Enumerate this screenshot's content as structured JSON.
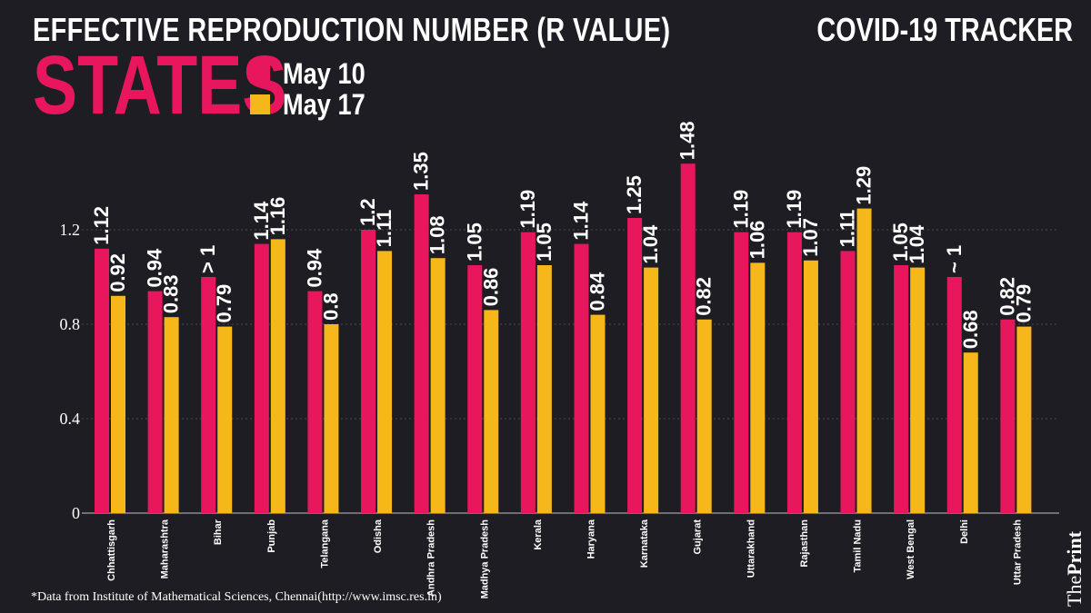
{
  "header": {
    "title": "EFFECTIVE REPRODUCTION NUMBER (R VALUE)",
    "subtitle": "STATES",
    "tracker": "COVID-19 TRACKER"
  },
  "footnote": "*Data from Institute of Mathematical Sciences, Chennai(http://www.imsc.res.in)",
  "brand": {
    "the": "The",
    "print": "Print"
  },
  "colors": {
    "may10": "#e8175d",
    "may17": "#f6b71a",
    "background": "#1d1d23",
    "grid": "#4a4a52"
  },
  "chart_data": {
    "type": "bar",
    "title": "EFFECTIVE REPRODUCTION NUMBER (R VALUE)",
    "xlabel": "",
    "ylabel": "",
    "ylim": [
      0,
      1.48
    ],
    "yticks": [
      0,
      0.4,
      0.8,
      1.2
    ],
    "ytick_labels": [
      "0",
      "0.4",
      "0.8",
      "1.2"
    ],
    "grid": true,
    "legend_position": "top-left",
    "categories": [
      "Chhattisgarh",
      "Maharashtra",
      "Bihar",
      "Punjab",
      "Telangana",
      "Odisha",
      "Andhra Pradesh",
      "Madhya Pradesh",
      "Kerala",
      "Haryana",
      "Karnataka",
      "Gujarat",
      "Uttarakhand",
      "Rajasthan",
      "Tamil Nadu",
      "West Bengal",
      "Delhi",
      "Uttar Pradesh"
    ],
    "series": [
      {
        "name": "May 10",
        "values": [
          1.12,
          0.94,
          1.0,
          1.14,
          0.94,
          1.2,
          1.35,
          1.05,
          1.19,
          1.14,
          1.25,
          1.48,
          1.19,
          1.19,
          1.11,
          1.05,
          1.0,
          0.82
        ],
        "labels": [
          "1.12",
          "0.94",
          "> 1",
          "1.14",
          "0.94",
          "1.2",
          "1.35",
          "1.05",
          "1.19",
          "1.14",
          "1.25",
          "1.48",
          "1.19",
          "1.19",
          "1.11",
          "1.05",
          "~ 1",
          "0.82"
        ]
      },
      {
        "name": "May 17",
        "values": [
          0.92,
          0.83,
          0.79,
          1.16,
          0.8,
          1.11,
          1.08,
          0.86,
          1.05,
          0.84,
          1.04,
          0.82,
          1.06,
          1.07,
          1.29,
          1.04,
          0.68,
          0.79
        ],
        "labels": [
          "0.92",
          "0.83",
          "0.79",
          "1.16",
          "0.8",
          "1.11",
          "1.08",
          "0.86",
          "1.05",
          "0.84",
          "1.04",
          "0.82",
          "1.06",
          "1.07",
          "1.29",
          "1.04",
          "0.68",
          "0.79"
        ]
      }
    ]
  }
}
